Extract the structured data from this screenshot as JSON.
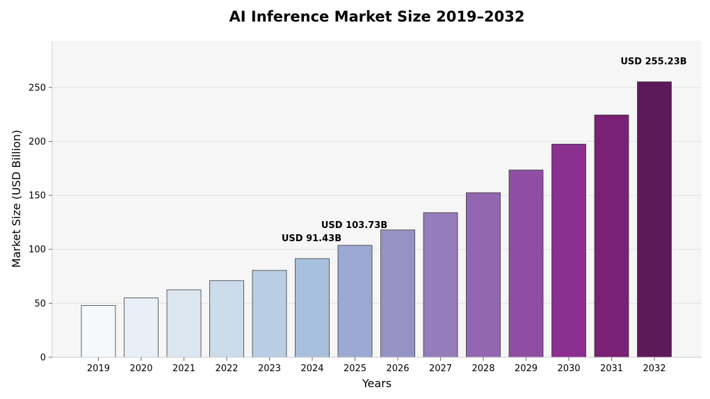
{
  "chart_data": {
    "type": "bar",
    "title": "AI Inference Market Size 2019–2032",
    "xlabel": "Years",
    "ylabel": "Market Size (USD Billion)",
    "categories": [
      "2019",
      "2020",
      "2021",
      "2022",
      "2023",
      "2024",
      "2025",
      "2026",
      "2027",
      "2028",
      "2029",
      "2030",
      "2031",
      "2032"
    ],
    "values": [
      48,
      55,
      62.5,
      71,
      80.5,
      91.43,
      103.73,
      118,
      134,
      152.5,
      173.5,
      197.5,
      224.5,
      255.23
    ],
    "ylim": [
      0,
      293
    ],
    "yticks": [
      0,
      50,
      100,
      150,
      200,
      250
    ],
    "grid": "horizontal",
    "colors": [
      "#f6f9fc",
      "#e8eff7",
      "#dbe6f1",
      "#cbdbe9",
      "#b8cee4",
      "#a8c0de",
      "#9ca9d2",
      "#9693c4",
      "#957cba",
      "#9266b0",
      "#8f4ea3",
      "#8b2f90",
      "#7a2075",
      "#5c1a5a"
    ],
    "annotations": [
      {
        "category": "2024",
        "text": "USD 91.43B"
      },
      {
        "category": "2025",
        "text": "USD 103.73B"
      },
      {
        "category": "2032",
        "text": "USD 255.23B"
      }
    ]
  }
}
